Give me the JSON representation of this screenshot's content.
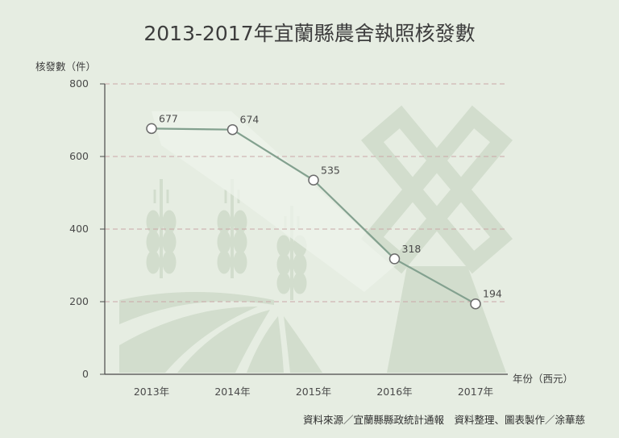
{
  "colors": {
    "background": "#e6ede2",
    "line": "#83a18f",
    "marker_fill": "#ffffff",
    "marker_stroke": "#6b6b6b",
    "gridline": "#c9a8a8",
    "decoration": "#cfdccb",
    "text": "#3d3d3d"
  },
  "chart_data": {
    "type": "line",
    "title": "2013-2017年宜蘭縣農舍執照核發數",
    "ylabel": "核發數（件）",
    "xlabel": "年份（西元）",
    "categories": [
      "2013年",
      "2014年",
      "2015年",
      "2016年",
      "2017年"
    ],
    "series": [
      {
        "values": [
          677,
          674,
          535,
          318,
          194
        ]
      }
    ],
    "ylim": [
      0,
      800
    ],
    "yticks": [
      0,
      200,
      400,
      600,
      800
    ],
    "grid": true
  },
  "footer": {
    "source": "資料來源／宜蘭縣縣政統計通報　資料整理、圖表製作／涂華慈"
  }
}
